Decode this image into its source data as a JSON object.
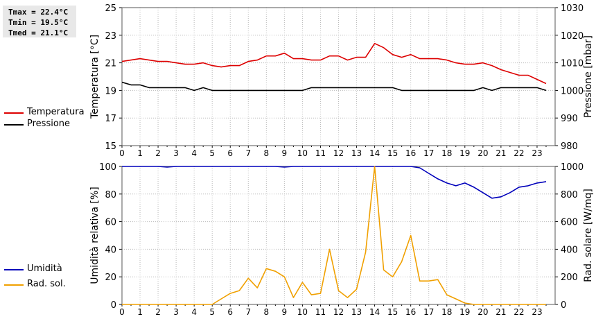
{
  "stats": {
    "tmax": "Tmax = 22.4°C",
    "tmin": "Tmin = 19.5°C",
    "tmed": "Tmed = 21.1°C"
  },
  "colors": {
    "temperature": "#dd0000",
    "pressure": "#000000",
    "humidity": "#0000bb",
    "solar": "#f0a000",
    "grid": "#bbbbbb",
    "frame": "#555555"
  },
  "chart_data": [
    {
      "type": "line",
      "left_axis_label": "Temperatura [°C]",
      "right_axis_label": "Pressione [mbar]",
      "xlim": [
        0,
        24
      ],
      "x_ticks": [
        "0",
        "1",
        "2",
        "3",
        "4",
        "5",
        "6",
        "7",
        "8",
        "9",
        "10",
        "11",
        "12",
        "13",
        "14",
        "15",
        "16",
        "17",
        "18",
        "19",
        "20",
        "21",
        "22",
        "23"
      ],
      "left_ylim": [
        15,
        25
      ],
      "left_ticks": [
        "15",
        "17",
        "19",
        "21",
        "23",
        "25"
      ],
      "right_ylim": [
        980,
        1030
      ],
      "right_ticks": [
        "980",
        "990",
        "1000",
        "1010",
        "1020",
        "1030"
      ],
      "grid": true,
      "legend": [
        "Temperatura",
        "Pressione"
      ],
      "series": [
        {
          "name": "Temperatura",
          "axis": "left",
          "color": "#dd0000",
          "x": [
            0,
            0.5,
            1,
            1.5,
            2,
            2.5,
            3,
            3.5,
            4,
            4.5,
            5,
            5.5,
            6,
            6.5,
            7,
            7.5,
            8,
            8.5,
            9,
            9.5,
            10,
            10.5,
            11,
            11.5,
            12,
            12.5,
            13,
            13.5,
            14,
            14.5,
            15,
            15.5,
            16,
            16.5,
            17,
            17.5,
            18,
            18.5,
            19,
            19.5,
            20,
            20.5,
            21,
            21.5,
            22,
            22.5,
            23,
            23.5
          ],
          "y": [
            21.1,
            21.2,
            21.3,
            21.2,
            21.1,
            21.1,
            21.0,
            20.9,
            20.9,
            21.0,
            20.8,
            20.7,
            20.8,
            20.8,
            21.1,
            21.2,
            21.5,
            21.5,
            21.7,
            21.3,
            21.3,
            21.2,
            21.2,
            21.5,
            21.5,
            21.2,
            21.4,
            21.4,
            22.4,
            22.1,
            21.6,
            21.4,
            21.6,
            21.3,
            21.3,
            21.3,
            21.2,
            21.0,
            20.9,
            20.9,
            21.0,
            20.8,
            20.5,
            20.3,
            20.1,
            20.1,
            19.8,
            19.5
          ]
        },
        {
          "name": "Pressione",
          "axis": "right",
          "color": "#000000",
          "x": [
            0,
            0.5,
            1,
            1.5,
            2,
            2.5,
            3,
            3.5,
            4,
            4.5,
            5,
            5.5,
            6,
            6.5,
            7,
            7.5,
            8,
            8.5,
            9,
            9.5,
            10,
            10.5,
            11,
            11.5,
            12,
            12.5,
            13,
            13.5,
            14,
            14.5,
            15,
            15.5,
            16,
            16.5,
            17,
            17.5,
            18,
            18.5,
            19,
            19.5,
            20,
            20.5,
            21,
            21.5,
            22,
            22.5,
            23,
            23.5
          ],
          "y": [
            1003,
            1002,
            1002,
            1001,
            1001,
            1001,
            1001,
            1001,
            1000,
            1001,
            1000,
            1000,
            1000,
            1000,
            1000,
            1000,
            1000,
            1000,
            1000,
            1000,
            1000,
            1001,
            1001,
            1001,
            1001,
            1001,
            1001,
            1001,
            1001,
            1001,
            1001,
            1000,
            1000,
            1000,
            1000,
            1000,
            1000,
            1000,
            1000,
            1000,
            1001,
            1000,
            1001,
            1001,
            1001,
            1001,
            1001,
            1000
          ]
        }
      ]
    },
    {
      "type": "line",
      "left_axis_label": "Umidità relativa [%]",
      "right_axis_label": "Rad. solare [W/mq]",
      "xlim": [
        0,
        24
      ],
      "x_ticks": [
        "0",
        "1",
        "2",
        "3",
        "4",
        "5",
        "6",
        "7",
        "8",
        "9",
        "10",
        "11",
        "12",
        "13",
        "14",
        "15",
        "16",
        "17",
        "18",
        "19",
        "20",
        "21",
        "22",
        "23"
      ],
      "left_ylim": [
        0,
        100
      ],
      "left_ticks": [
        "0",
        "20",
        "40",
        "60",
        "80",
        "100"
      ],
      "right_ylim": [
        0,
        1000
      ],
      "right_ticks": [
        "0",
        "200",
        "400",
        "600",
        "800",
        "1000"
      ],
      "grid": true,
      "legend": [
        "Umidità",
        "Rad. sol."
      ],
      "series": [
        {
          "name": "Umidità",
          "axis": "left",
          "color": "#0000bb",
          "x": [
            0,
            0.5,
            1,
            1.5,
            2,
            2.5,
            3,
            3.5,
            4,
            4.5,
            5,
            5.5,
            6,
            6.5,
            7,
            7.5,
            8,
            8.5,
            9,
            9.5,
            10,
            10.5,
            11,
            11.5,
            12,
            12.5,
            13,
            13.5,
            14,
            14.5,
            15,
            15.5,
            16,
            16.5,
            17,
            17.5,
            18,
            18.5,
            19,
            19.5,
            20,
            20.5,
            21,
            21.5,
            22,
            22.5,
            23,
            23.5
          ],
          "y": [
            100,
            100,
            100,
            100,
            100,
            99.5,
            100,
            100,
            100,
            100,
            100,
            100,
            100,
            100,
            100,
            100,
            100,
            100,
            99.5,
            100,
            100,
            100,
            100,
            100,
            100,
            100,
            100,
            100,
            100,
            100,
            100,
            100,
            100,
            99,
            95,
            91,
            88,
            86,
            88,
            85,
            81,
            77,
            78,
            81,
            85,
            86,
            88,
            89
          ]
        },
        {
          "name": "Rad. sol.",
          "axis": "right",
          "color": "#f0a000",
          "x": [
            0,
            0.5,
            1,
            1.5,
            2,
            2.5,
            3,
            3.5,
            4,
            4.5,
            5,
            5.5,
            6,
            6.5,
            7,
            7.5,
            8,
            8.5,
            9,
            9.5,
            10,
            10.5,
            11,
            11.5,
            12,
            12.5,
            13,
            13.5,
            14,
            14.5,
            15,
            15.5,
            16,
            16.5,
            17,
            17.5,
            18,
            18.5,
            19,
            19.5,
            20,
            20.5,
            21,
            21.5,
            22,
            22.5,
            23,
            23.5
          ],
          "y": [
            0,
            0,
            0,
            0,
            0,
            0,
            0,
            0,
            0,
            0,
            0,
            40,
            80,
            100,
            190,
            120,
            260,
            240,
            200,
            50,
            160,
            70,
            80,
            400,
            100,
            50,
            110,
            380,
            1000,
            250,
            200,
            310,
            500,
            170,
            170,
            180,
            70,
            40,
            10,
            0,
            0,
            0,
            0,
            0,
            0,
            0,
            0,
            0
          ]
        }
      ]
    }
  ]
}
